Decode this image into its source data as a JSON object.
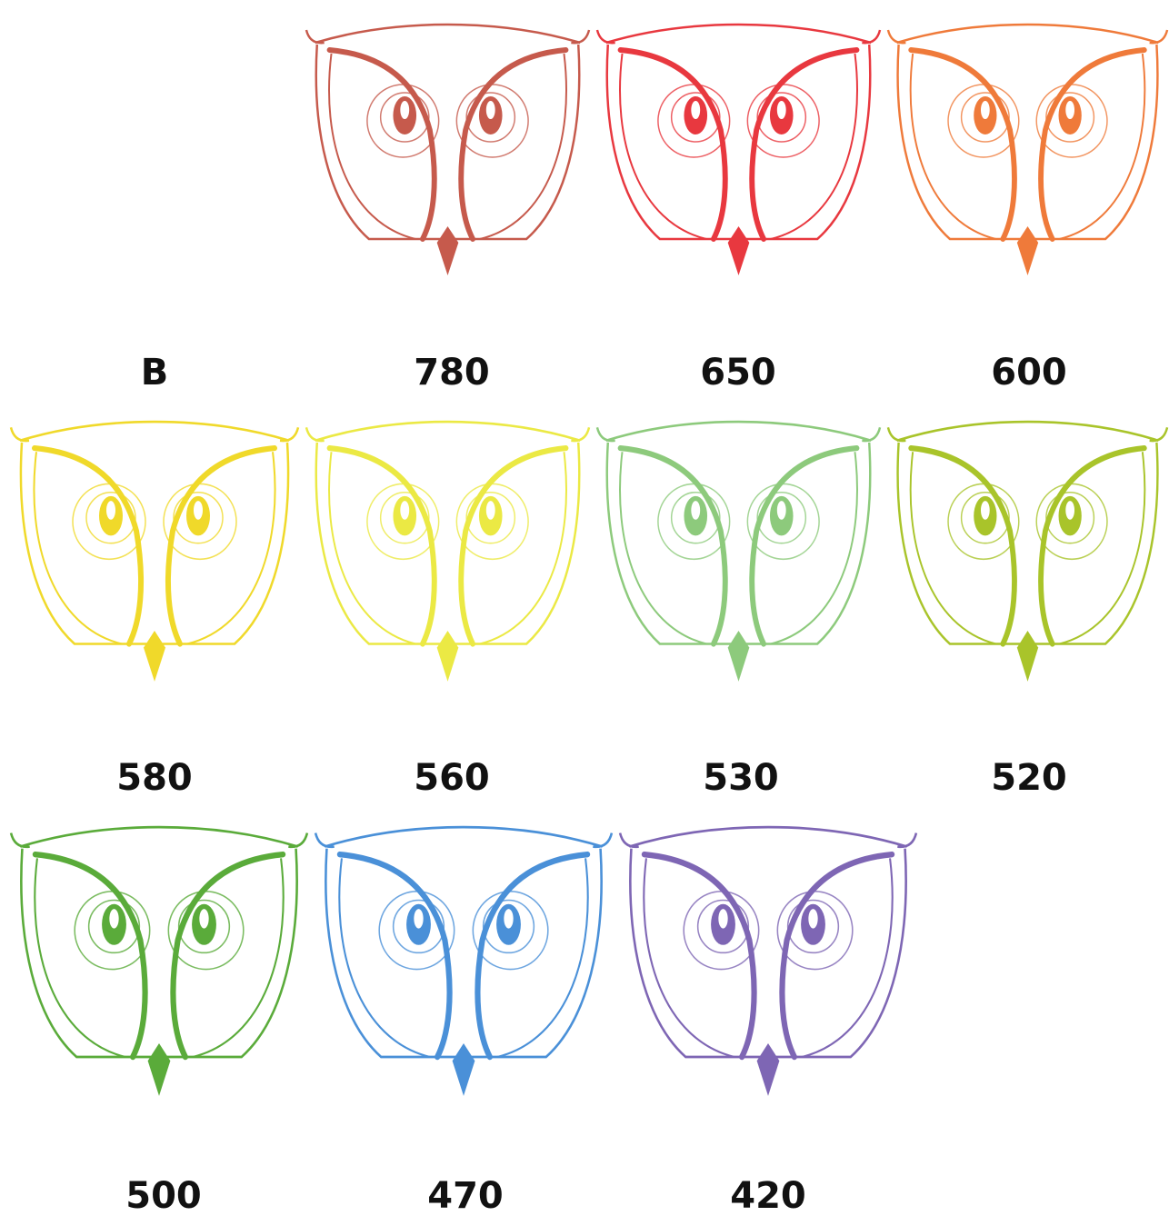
{
  "panels": [
    {
      "label": "B"
    },
    {
      "label": "780",
      "color": "#c65a4c"
    },
    {
      "label": "650",
      "color": "#e8383f"
    },
    {
      "label": "600",
      "color": "#ef7a3a"
    },
    {
      "label": "580",
      "color": "#f0d92a"
    },
    {
      "label": "560",
      "color": "#ebe944"
    },
    {
      "label": "530",
      "color": "#8dca7c"
    },
    {
      "label": "520",
      "color": "#a9c42a"
    },
    {
      "label": "500",
      "color": "#5aab3a"
    },
    {
      "label": "470",
      "color": "#4a90d8"
    },
    {
      "label": "420",
      "color": "#7e66b4"
    }
  ]
}
